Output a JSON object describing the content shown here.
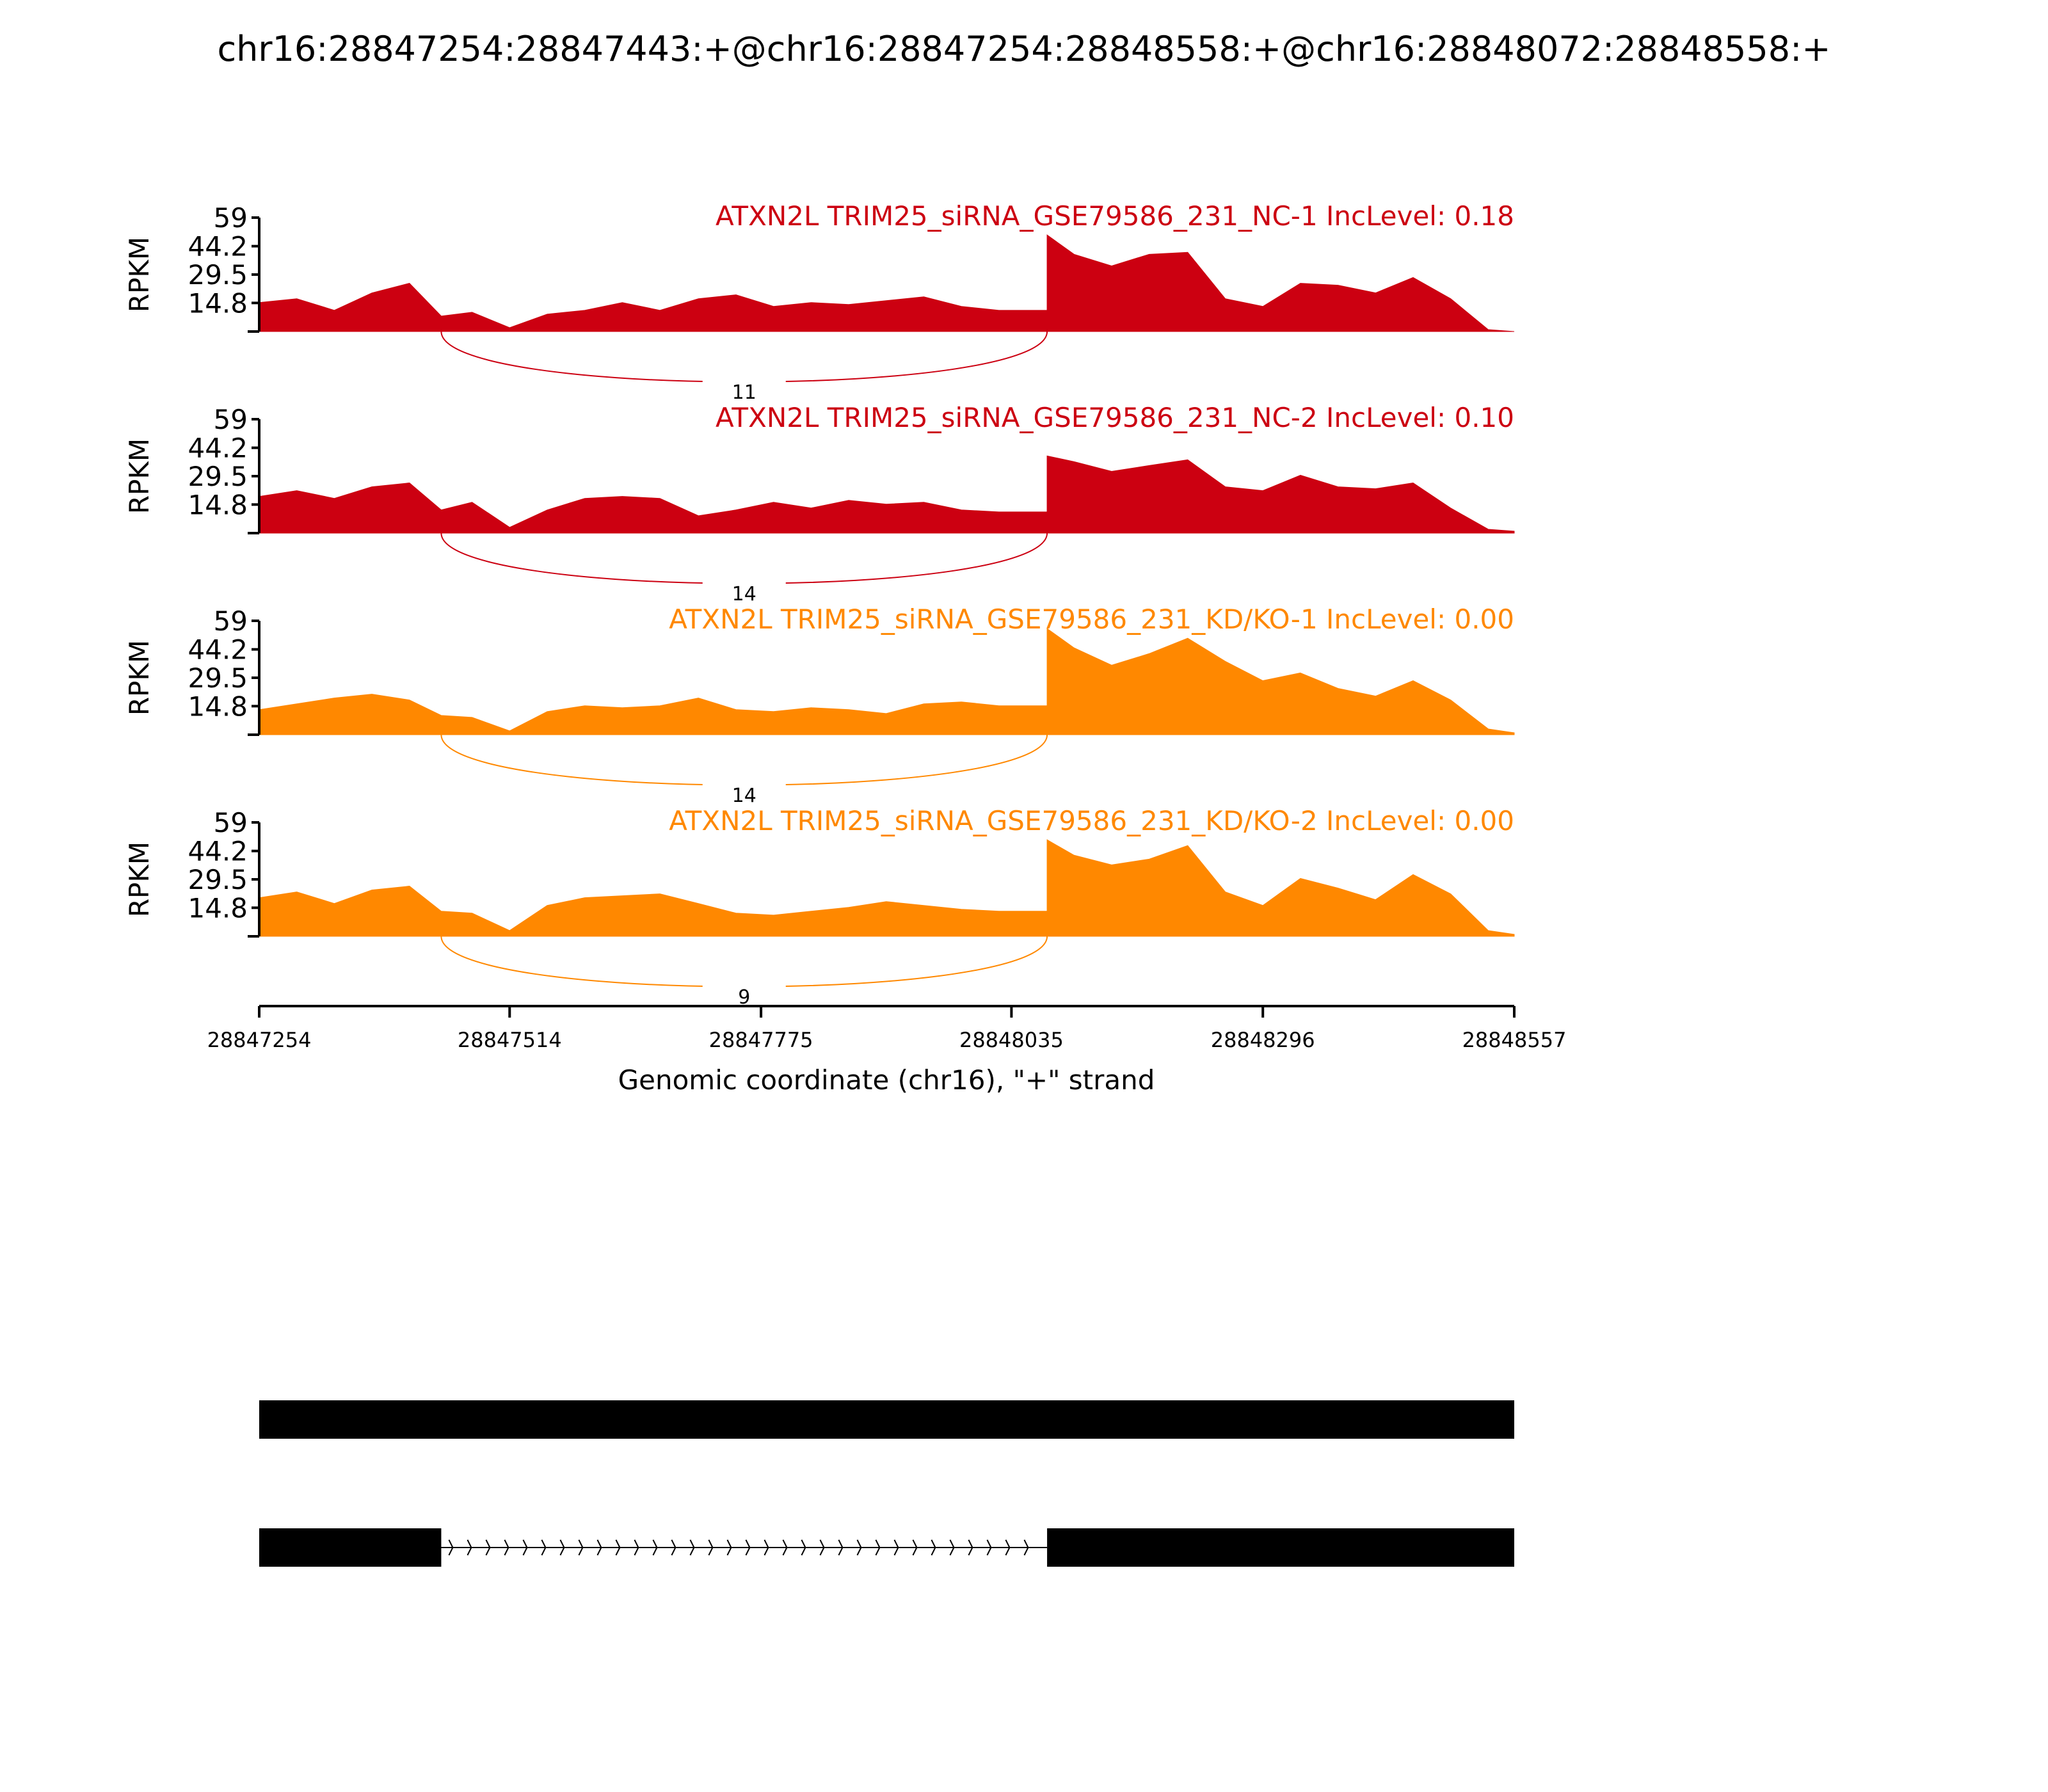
{
  "figure_title": "chr16:28847254:28847443:+@chr16:28847254:28848558:+@chr16:28848072:28848558:+",
  "colors": {
    "nc": "#CC0011",
    "kd": "#FF8800",
    "axis": "#000000",
    "exon": "#000000"
  },
  "chart_data": {
    "type": "area",
    "title": "chr16:28847254:28847443:+@chr16:28847254:28848558:+@chr16:28848072:28848558:+",
    "xlabel": "Genomic coordinate (chr16), \"+\" strand",
    "ylabel": "RPKM",
    "xlim": [
      28847254,
      28848557
    ],
    "ylim": [
      0,
      59
    ],
    "x_ticks": [
      "28847254",
      "28847514",
      "28847775",
      "28848035",
      "28848296",
      "28848557"
    ],
    "y_ticks": [
      "14.8",
      "29.5",
      "44.2",
      "59"
    ],
    "x": [
      28847254,
      28847293,
      28847332,
      28847371,
      28847410,
      28847443,
      28847475,
      28847514,
      28847553,
      28847592,
      28847631,
      28847670,
      28847710,
      28847749,
      28847788,
      28847827,
      28847866,
      28847905,
      28847944,
      28847983,
      28848022,
      28848072,
      28848100,
      28848139,
      28848178,
      28848218,
      28848257,
      28848296,
      28848335,
      28848374,
      28848413,
      28848452,
      28848491,
      28848530,
      28848557
    ],
    "series": [
      {
        "name": "ATXN2L TRIM25_siRNA_GSE79586_231_NC-1 IncLevel: 0.18",
        "inclevel": 0.18,
        "group": "nc",
        "values": [
          15,
          17,
          11,
          20,
          25,
          8,
          10,
          2,
          9,
          11,
          15,
          11,
          17,
          19,
          13,
          15,
          14,
          16,
          18,
          13,
          11,
          50,
          40,
          34,
          40,
          41,
          17,
          13,
          25,
          24,
          20,
          28,
          17,
          1,
          0
        ],
        "junction": {
          "start": 28847443,
          "end": 28848072,
          "count": "11"
        }
      },
      {
        "name": "ATXN2L TRIM25_siRNA_GSE79586_231_NC-2 IncLevel: 0.10",
        "inclevel": 0.1,
        "group": "nc",
        "values": [
          19,
          22,
          18,
          24,
          26,
          12,
          16,
          3,
          12,
          18,
          19,
          18,
          9,
          12,
          16,
          13,
          17,
          15,
          16,
          12,
          11,
          40,
          37,
          32,
          35,
          38,
          24,
          22,
          30,
          24,
          23,
          26,
          13,
          2,
          1
        ],
        "junction": {
          "start": 28847443,
          "end": 28848072,
          "count": "14"
        }
      },
      {
        "name": "ATXN2L TRIM25_siRNA_GSE79586_231_KD/KO-1 IncLevel: 0.00",
        "inclevel": 0.0,
        "group": "kd",
        "values": [
          13,
          16,
          19,
          21,
          18,
          10,
          9,
          2,
          12,
          15,
          14,
          15,
          19,
          13,
          12,
          14,
          13,
          11,
          16,
          17,
          15,
          55,
          45,
          36,
          42,
          50,
          38,
          28,
          32,
          24,
          20,
          28,
          18,
          3,
          1
        ],
        "junction": {
          "start": 28847443,
          "end": 28848072,
          "count": "14"
        }
      },
      {
        "name": "ATXN2L TRIM25_siRNA_GSE79586_231_KD/KO-2 IncLevel: 0.00",
        "inclevel": 0.0,
        "group": "kd",
        "values": [
          20,
          23,
          17,
          24,
          26,
          13,
          12,
          3,
          16,
          20,
          21,
          22,
          17,
          12,
          11,
          13,
          15,
          18,
          16,
          14,
          13,
          50,
          42,
          37,
          40,
          47,
          23,
          16,
          30,
          25,
          19,
          32,
          22,
          3,
          1
        ],
        "junction": {
          "start": 28847443,
          "end": 28848072,
          "count": "9"
        }
      }
    ],
    "isoforms": [
      {
        "exons": [
          [
            28847254,
            28848557
          ]
        ]
      },
      {
        "exons": [
          [
            28847254,
            28847443
          ],
          [
            28848072,
            28848557
          ]
        ],
        "intron_strand": "+"
      }
    ]
  }
}
